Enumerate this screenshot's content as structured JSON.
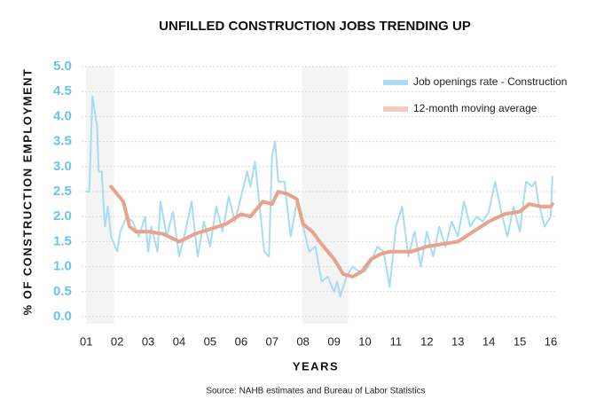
{
  "chart_data": {
    "type": "line",
    "title": "UNFILLED CONSTRUCTION JOBS TRENDING UP",
    "y_label": "% OF CONSTRUCTION EMPLOYMENT",
    "x_label": "YEARS",
    "source": "Source: NAHB estimates and Bureau of Labor Statistics",
    "xlim": [
      2000.85,
      2016.2
    ],
    "ylim": [
      0,
      5
    ],
    "xticks": [
      {
        "value": 2001,
        "label": "01"
      },
      {
        "value": 2002,
        "label": "02"
      },
      {
        "value": 2003,
        "label": "03"
      },
      {
        "value": 2004,
        "label": "04"
      },
      {
        "value": 2005,
        "label": "05"
      },
      {
        "value": 2006,
        "label": "06"
      },
      {
        "value": 2007,
        "label": "07"
      },
      {
        "value": 2008,
        "label": "08"
      },
      {
        "value": 2009,
        "label": "09"
      },
      {
        "value": 2010,
        "label": "10"
      },
      {
        "value": 2011,
        "label": "11"
      },
      {
        "value": 2012,
        "label": "12"
      },
      {
        "value": 2013,
        "label": "13"
      },
      {
        "value": 2014,
        "label": "14"
      },
      {
        "value": 2015,
        "label": "15"
      },
      {
        "value": 2016,
        "label": "16"
      }
    ],
    "yticks": [
      {
        "value": 0,
        "label": "0.0"
      },
      {
        "value": 0.5,
        "label": "0.5"
      },
      {
        "value": 1,
        "label": "1.0"
      },
      {
        "value": 1.5,
        "label": "1.5"
      },
      {
        "value": 2,
        "label": "2.0"
      },
      {
        "value": 2.5,
        "label": "2.5"
      },
      {
        "value": 3,
        "label": "3.0"
      },
      {
        "value": 3.5,
        "label": "3.5"
      },
      {
        "value": 4,
        "label": "4.0"
      },
      {
        "value": 4.5,
        "label": "4.5"
      },
      {
        "value": 5,
        "label": "5.0"
      }
    ],
    "grid": true,
    "legend": "upper right",
    "recessions": [
      [
        2001.0,
        2001.9
      ],
      [
        2007.97,
        2009.45
      ]
    ],
    "series": [
      {
        "name": "Job openings rate - Construction",
        "color": "#a6dcf4",
        "x": [
          2001.0,
          2001.1,
          2001.2,
          2001.35,
          2001.4,
          2001.5,
          2001.6,
          2001.7,
          2001.8,
          2002.0,
          2002.1,
          2002.3,
          2002.5,
          2002.7,
          2002.9,
          2003.0,
          2003.1,
          2003.3,
          2003.4,
          2003.6,
          2003.8,
          2004.0,
          2004.2,
          2004.4,
          2004.6,
          2004.8,
          2005.0,
          2005.2,
          2005.4,
          2005.6,
          2005.8,
          2006.0,
          2006.2,
          2006.3,
          2006.45,
          2006.6,
          2006.75,
          2006.9,
          2007.0,
          2007.1,
          2007.2,
          2007.4,
          2007.6,
          2007.8,
          2008.0,
          2008.2,
          2008.4,
          2008.6,
          2008.8,
          2009.0,
          2009.1,
          2009.2,
          2009.4,
          2009.6,
          2009.8,
          2010.0,
          2010.2,
          2010.4,
          2010.6,
          2010.8,
          2011.0,
          2011.2,
          2011.4,
          2011.6,
          2011.8,
          2012.0,
          2012.2,
          2012.4,
          2012.6,
          2012.8,
          2013.0,
          2013.2,
          2013.4,
          2013.6,
          2013.8,
          2014.0,
          2014.2,
          2014.4,
          2014.6,
          2014.8,
          2015.0,
          2015.2,
          2015.4,
          2015.5,
          2015.6,
          2015.8,
          2016.0,
          2016.05
        ],
        "values": [
          2.5,
          2.5,
          4.4,
          3.8,
          2.9,
          2.9,
          1.8,
          2.2,
          1.6,
          1.3,
          1.7,
          2.0,
          1.9,
          1.6,
          2.0,
          1.3,
          1.8,
          1.3,
          2.3,
          1.6,
          2.1,
          1.2,
          1.7,
          2.3,
          1.2,
          1.9,
          1.4,
          2.2,
          1.7,
          2.4,
          1.9,
          2.4,
          2.9,
          2.6,
          3.1,
          2.2,
          1.3,
          1.2,
          3.2,
          3.5,
          2.7,
          2.7,
          1.6,
          2.3,
          1.8,
          1.3,
          1.4,
          0.7,
          0.8,
          0.5,
          0.7,
          0.4,
          0.8,
          1.0,
          0.9,
          0.9,
          1.1,
          1.4,
          1.3,
          0.6,
          1.8,
          2.2,
          1.2,
          1.7,
          1.0,
          1.7,
          1.2,
          1.8,
          1.4,
          1.9,
          1.6,
          2.3,
          1.8,
          2.0,
          1.9,
          2.1,
          2.7,
          2.1,
          1.6,
          2.2,
          1.7,
          2.7,
          2.6,
          2.7,
          2.3,
          1.8,
          2.0,
          2.8
        ]
      },
      {
        "name": "12-month moving average",
        "color": "#e8a48a",
        "x": [
          2001.8,
          2002.2,
          2002.4,
          2002.6,
          2003.0,
          2003.5,
          2004.0,
          2004.5,
          2005.0,
          2005.5,
          2006.0,
          2006.3,
          2006.7,
          2007.0,
          2007.2,
          2007.5,
          2007.8,
          2008.0,
          2008.3,
          2008.6,
          2009.0,
          2009.3,
          2009.6,
          2009.9,
          2010.2,
          2010.5,
          2010.8,
          2011.0,
          2011.5,
          2012.0,
          2012.5,
          2013.0,
          2013.5,
          2014.0,
          2014.5,
          2015.0,
          2015.3,
          2015.7,
          2016.0,
          2016.05
        ],
        "values": [
          2.6,
          2.3,
          1.8,
          1.7,
          1.7,
          1.65,
          1.5,
          1.65,
          1.75,
          1.85,
          2.05,
          2.0,
          2.3,
          2.25,
          2.5,
          2.45,
          2.35,
          1.85,
          1.7,
          1.45,
          1.15,
          0.85,
          0.8,
          0.9,
          1.15,
          1.25,
          1.3,
          1.3,
          1.3,
          1.4,
          1.45,
          1.5,
          1.7,
          1.9,
          2.05,
          2.1,
          2.25,
          2.2,
          2.2,
          2.25
        ]
      }
    ]
  }
}
